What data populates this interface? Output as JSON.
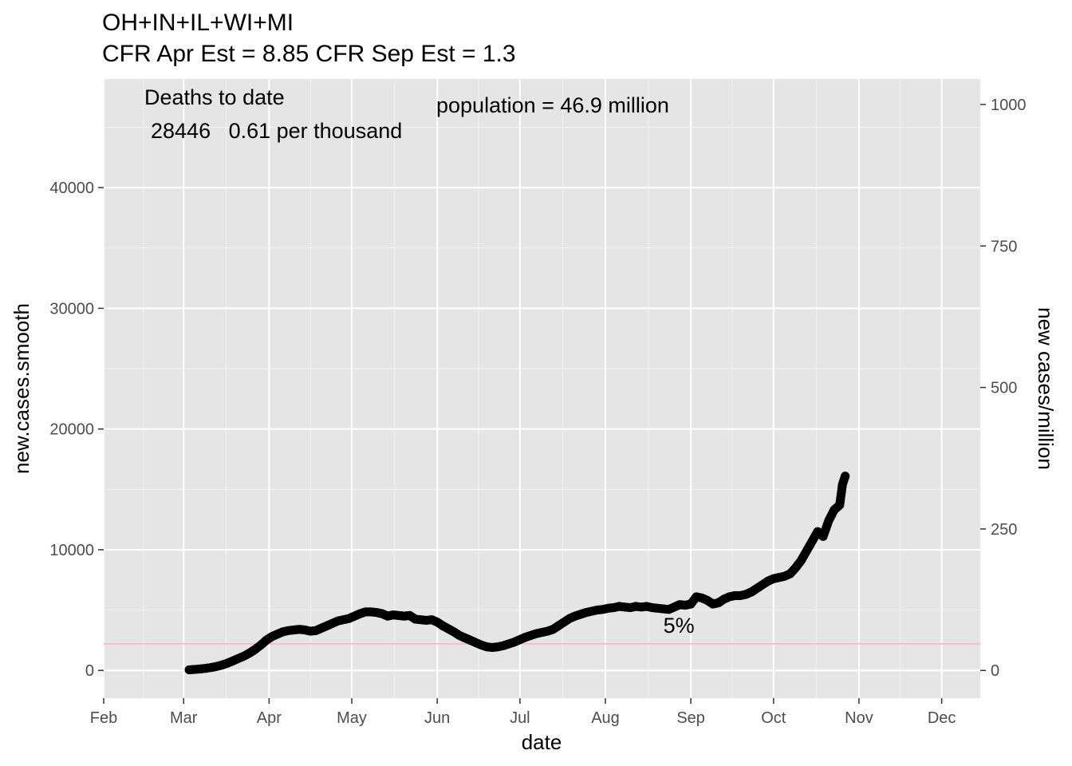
{
  "chart_data": {
    "type": "scatter",
    "title": "OH+IN+IL+WI+MI",
    "subtitle": "CFR Apr Est = 8.85   CFR Sep Est = 1.3",
    "xlabel": "date",
    "ylabel": "new.cases.smooth",
    "y2label": "new cases/million",
    "xlim": [
      "2020-02-01",
      "2020-12-15"
    ],
    "ylim": [
      -2300,
      49000
    ],
    "y2lim": [
      -49,
      1045
    ],
    "x_ticks": [
      {
        "date": "2020-02-01",
        "label": "Feb"
      },
      {
        "date": "2020-03-01",
        "label": "Mar"
      },
      {
        "date": "2020-04-01",
        "label": "Apr"
      },
      {
        "date": "2020-05-01",
        "label": "May"
      },
      {
        "date": "2020-06-01",
        "label": "Jun"
      },
      {
        "date": "2020-07-01",
        "label": "Jul"
      },
      {
        "date": "2020-08-01",
        "label": "Aug"
      },
      {
        "date": "2020-09-01",
        "label": "Sep"
      },
      {
        "date": "2020-10-01",
        "label": "Oct"
      },
      {
        "date": "2020-11-01",
        "label": "Nov"
      },
      {
        "date": "2020-12-01",
        "label": "Dec"
      }
    ],
    "y_ticks": [
      0,
      10000,
      20000,
      30000,
      40000
    ],
    "y2_ticks": [
      0,
      250,
      500,
      750,
      1000
    ],
    "grid": true,
    "reference_line": {
      "y": 2200,
      "color": "#ffb6c1"
    },
    "annotations": {
      "deaths_header": "Deaths to date",
      "deaths_values": "28446   0.61 per thousand",
      "population": "population = 46.9 million",
      "pct_label": "5%",
      "pct_label_x": "2020-08-22",
      "pct_label_y": 4300
    },
    "series": [
      {
        "point_color": "#000000",
        "points": [
          [
            "2020-03-03",
            50
          ],
          [
            "2020-03-05",
            80
          ],
          [
            "2020-03-07",
            120
          ],
          [
            "2020-03-09",
            170
          ],
          [
            "2020-03-11",
            240
          ],
          [
            "2020-03-13",
            330
          ],
          [
            "2020-03-15",
            450
          ],
          [
            "2020-03-17",
            610
          ],
          [
            "2020-03-19",
            800
          ],
          [
            "2020-03-21",
            1000
          ],
          [
            "2020-03-23",
            1200
          ],
          [
            "2020-03-25",
            1450
          ],
          [
            "2020-03-27",
            1750
          ],
          [
            "2020-03-29",
            2100
          ],
          [
            "2020-03-31",
            2500
          ],
          [
            "2020-04-02",
            2800
          ],
          [
            "2020-04-04",
            3000
          ],
          [
            "2020-04-06",
            3200
          ],
          [
            "2020-04-08",
            3300
          ],
          [
            "2020-04-10",
            3350
          ],
          [
            "2020-04-12",
            3400
          ],
          [
            "2020-04-14",
            3350
          ],
          [
            "2020-04-16",
            3250
          ],
          [
            "2020-04-18",
            3300
          ],
          [
            "2020-04-20",
            3500
          ],
          [
            "2020-04-22",
            3700
          ],
          [
            "2020-04-24",
            3900
          ],
          [
            "2020-04-26",
            4100
          ],
          [
            "2020-04-28",
            4200
          ],
          [
            "2020-04-30",
            4300
          ],
          [
            "2020-05-02",
            4500
          ],
          [
            "2020-05-04",
            4700
          ],
          [
            "2020-05-06",
            4850
          ],
          [
            "2020-05-08",
            4850
          ],
          [
            "2020-05-10",
            4800
          ],
          [
            "2020-05-12",
            4700
          ],
          [
            "2020-05-14",
            4500
          ],
          [
            "2020-05-16",
            4600
          ],
          [
            "2020-05-18",
            4550
          ],
          [
            "2020-05-20",
            4500
          ],
          [
            "2020-05-22",
            4550
          ],
          [
            "2020-05-24",
            4250
          ],
          [
            "2020-05-26",
            4200
          ],
          [
            "2020-05-28",
            4150
          ],
          [
            "2020-05-30",
            4200
          ],
          [
            "2020-06-01",
            4000
          ],
          [
            "2020-06-03",
            3700
          ],
          [
            "2020-06-05",
            3450
          ],
          [
            "2020-06-07",
            3200
          ],
          [
            "2020-06-09",
            2900
          ],
          [
            "2020-06-11",
            2700
          ],
          [
            "2020-06-13",
            2500
          ],
          [
            "2020-06-15",
            2300
          ],
          [
            "2020-06-17",
            2100
          ],
          [
            "2020-06-19",
            1950
          ],
          [
            "2020-06-21",
            1900
          ],
          [
            "2020-06-23",
            1950
          ],
          [
            "2020-06-25",
            2050
          ],
          [
            "2020-06-27",
            2200
          ],
          [
            "2020-06-29",
            2350
          ],
          [
            "2020-07-01",
            2550
          ],
          [
            "2020-07-03",
            2750
          ],
          [
            "2020-07-05",
            2900
          ],
          [
            "2020-07-07",
            3050
          ],
          [
            "2020-07-09",
            3150
          ],
          [
            "2020-07-11",
            3250
          ],
          [
            "2020-07-13",
            3400
          ],
          [
            "2020-07-15",
            3700
          ],
          [
            "2020-07-17",
            4000
          ],
          [
            "2020-07-19",
            4300
          ],
          [
            "2020-07-21",
            4500
          ],
          [
            "2020-07-23",
            4650
          ],
          [
            "2020-07-25",
            4800
          ],
          [
            "2020-07-27",
            4900
          ],
          [
            "2020-07-29",
            5000
          ],
          [
            "2020-07-31",
            5050
          ],
          [
            "2020-08-02",
            5150
          ],
          [
            "2020-08-04",
            5200
          ],
          [
            "2020-08-06",
            5300
          ],
          [
            "2020-08-08",
            5250
          ],
          [
            "2020-08-10",
            5200
          ],
          [
            "2020-08-12",
            5300
          ],
          [
            "2020-08-14",
            5250
          ],
          [
            "2020-08-16",
            5300
          ],
          [
            "2020-08-18",
            5200
          ],
          [
            "2020-08-20",
            5150
          ],
          [
            "2020-08-22",
            5100
          ],
          [
            "2020-08-24",
            5050
          ],
          [
            "2020-08-26",
            5250
          ],
          [
            "2020-08-28",
            5450
          ],
          [
            "2020-08-30",
            5400
          ],
          [
            "2020-09-01",
            5500
          ],
          [
            "2020-09-03",
            6100
          ],
          [
            "2020-09-05",
            6000
          ],
          [
            "2020-09-07",
            5800
          ],
          [
            "2020-09-09",
            5500
          ],
          [
            "2020-09-11",
            5600
          ],
          [
            "2020-09-13",
            5900
          ],
          [
            "2020-09-15",
            6100
          ],
          [
            "2020-09-17",
            6200
          ],
          [
            "2020-09-19",
            6200
          ],
          [
            "2020-09-21",
            6300
          ],
          [
            "2020-09-23",
            6500
          ],
          [
            "2020-09-25",
            6800
          ],
          [
            "2020-09-27",
            7100
          ],
          [
            "2020-09-29",
            7400
          ],
          [
            "2020-10-01",
            7600
          ],
          [
            "2020-10-03",
            7700
          ],
          [
            "2020-10-05",
            7800
          ],
          [
            "2020-10-07",
            8000
          ],
          [
            "2020-10-09",
            8500
          ],
          [
            "2020-10-11",
            9100
          ],
          [
            "2020-10-13",
            9900
          ],
          [
            "2020-10-15",
            10700
          ],
          [
            "2020-10-17",
            11500
          ],
          [
            "2020-10-19",
            11100
          ],
          [
            "2020-10-21",
            12400
          ],
          [
            "2020-10-23",
            13300
          ],
          [
            "2020-10-25",
            13700
          ],
          [
            "2020-10-26",
            15400
          ],
          [
            "2020-10-27",
            16100
          ]
        ]
      }
    ]
  }
}
